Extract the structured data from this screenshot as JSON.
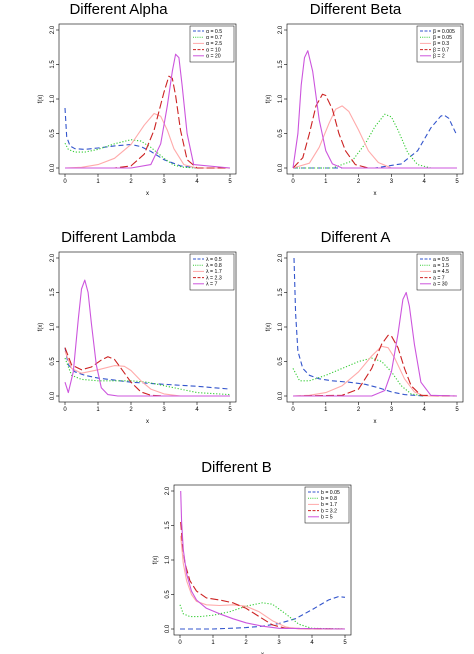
{
  "chart_data": [
    {
      "type": "line",
      "title": "Different Alpha",
      "xlabel": "x",
      "ylabel": "f(x)",
      "xlim": [
        0,
        5
      ],
      "ylim": [
        0,
        2.0
      ],
      "x_ticks": [
        "0",
        "1",
        "2",
        "3",
        "4",
        "5"
      ],
      "y_ticks": [
        "0.0",
        "0.5",
        "1.0",
        "1.5",
        "2.0"
      ],
      "legend_position": "top-right",
      "series": [
        {
          "name": "α = 0.5",
          "color": "#3355cc",
          "dash": "dashed",
          "x": [
            0,
            0.05,
            0.15,
            0.3,
            0.6,
            1.0,
            1.5,
            2.0,
            2.3,
            2.6,
            3.0,
            3.5,
            4.0,
            5.0
          ],
          "y": [
            0.87,
            0.45,
            0.32,
            0.28,
            0.27,
            0.29,
            0.32,
            0.34,
            0.31,
            0.24,
            0.12,
            0.03,
            0.0,
            0.0
          ]
        },
        {
          "name": "α = 0.7",
          "color": "#33cc33",
          "dash": "dotted",
          "x": [
            0,
            0.1,
            0.3,
            0.6,
            1.0,
            1.5,
            2.0,
            2.3,
            2.6,
            3.0,
            3.3,
            3.6,
            4.0,
            5.0
          ],
          "y": [
            0.36,
            0.27,
            0.23,
            0.23,
            0.27,
            0.35,
            0.41,
            0.39,
            0.3,
            0.14,
            0.04,
            0.01,
            0.0,
            0.0
          ]
        },
        {
          "name": "α = 2.5",
          "color": "#ffaaaa",
          "dash": "solid",
          "x": [
            0,
            0.5,
            1.0,
            1.5,
            2.0,
            2.4,
            2.7,
            2.9,
            3.1,
            3.3,
            3.6,
            4.0,
            5.0
          ],
          "y": [
            0.0,
            0.01,
            0.05,
            0.14,
            0.34,
            0.62,
            0.79,
            0.75,
            0.55,
            0.28,
            0.05,
            0.0,
            0.0
          ]
        },
        {
          "name": "α = 10",
          "color": "#cc2222",
          "dash": "longdash",
          "x": [
            0,
            1.5,
            2.0,
            2.4,
            2.7,
            3.0,
            3.15,
            3.25,
            3.35,
            3.5,
            3.7,
            4.0,
            5.0
          ],
          "y": [
            0.0,
            0.0,
            0.03,
            0.2,
            0.55,
            1.1,
            1.33,
            1.3,
            1.05,
            0.55,
            0.12,
            0.0,
            0.0
          ]
        },
        {
          "name": "α = 20",
          "color": "#cc55dd",
          "dash": "solid",
          "x": [
            0,
            2.0,
            2.6,
            2.9,
            3.1,
            3.25,
            3.35,
            3.45,
            3.55,
            3.7,
            3.9,
            5.0
          ],
          "y": [
            0.0,
            0.0,
            0.05,
            0.35,
            0.9,
            1.4,
            1.65,
            1.6,
            1.2,
            0.5,
            0.05,
            0.0
          ]
        }
      ]
    },
    {
      "type": "line",
      "title": "Different Beta",
      "xlabel": "x",
      "ylabel": "f(x)",
      "xlim": [
        0,
        5
      ],
      "ylim": [
        0,
        2.0
      ],
      "x_ticks": [
        "0",
        "1",
        "2",
        "3",
        "4",
        "5"
      ],
      "y_ticks": [
        "0.0",
        "0.5",
        "1.0",
        "1.5",
        "2.0"
      ],
      "legend_position": "top-right",
      "series": [
        {
          "name": "β = 0.005",
          "color": "#3355cc",
          "dash": "dashed",
          "x": [
            0,
            2.5,
            3.3,
            3.8,
            4.2,
            4.5,
            4.6,
            4.75,
            4.9,
            5.0
          ],
          "y": [
            0.0,
            0.0,
            0.06,
            0.25,
            0.58,
            0.75,
            0.77,
            0.72,
            0.57,
            0.47
          ]
        },
        {
          "name": "β = 0.05",
          "color": "#33cc33",
          "dash": "dotted",
          "x": [
            0,
            1.2,
            1.8,
            2.2,
            2.5,
            2.8,
            3.0,
            3.2,
            3.5,
            3.8,
            4.2,
            5.0
          ],
          "y": [
            0.0,
            0.0,
            0.1,
            0.35,
            0.6,
            0.78,
            0.74,
            0.55,
            0.22,
            0.05,
            0.0,
            0.0
          ]
        },
        {
          "name": "β = 0.3",
          "color": "#ffaaaa",
          "dash": "solid",
          "x": [
            0,
            0.5,
            0.8,
            1.1,
            1.3,
            1.5,
            1.7,
            2.0,
            2.3,
            2.6,
            3.0,
            5.0
          ],
          "y": [
            0.0,
            0.07,
            0.3,
            0.65,
            0.85,
            0.9,
            0.82,
            0.55,
            0.25,
            0.08,
            0.0,
            0.0
          ]
        },
        {
          "name": "β = 0.7",
          "color": "#cc2222",
          "dash": "longdash",
          "x": [
            0,
            0.3,
            0.5,
            0.7,
            0.9,
            1.0,
            1.2,
            1.4,
            1.6,
            1.9,
            2.3,
            5.0
          ],
          "y": [
            0.0,
            0.15,
            0.5,
            0.9,
            1.07,
            1.05,
            0.85,
            0.5,
            0.25,
            0.05,
            0.0,
            0.0
          ]
        },
        {
          "name": "β = 2",
          "color": "#cc55dd",
          "dash": "solid",
          "x": [
            0,
            0.15,
            0.25,
            0.35,
            0.45,
            0.6,
            0.8,
            1.0,
            1.2,
            1.5,
            5.0
          ],
          "y": [
            0.0,
            0.5,
            1.2,
            1.6,
            1.7,
            1.4,
            0.7,
            0.25,
            0.06,
            0.0,
            0.0
          ]
        }
      ]
    },
    {
      "type": "line",
      "title": "Different Lambda",
      "xlabel": "x",
      "ylabel": "f(x)",
      "xlim": [
        0,
        5
      ],
      "ylim": [
        0,
        2.0
      ],
      "x_ticks": [
        "0",
        "1",
        "2",
        "3",
        "4",
        "5"
      ],
      "y_ticks": [
        "0.0",
        "0.5",
        "1.0",
        "1.5",
        "2.0"
      ],
      "legend_position": "top-right",
      "series": [
        {
          "name": "λ = 0.5",
          "color": "#3355cc",
          "dash": "dashed",
          "x": [
            0,
            0.1,
            0.3,
            0.6,
            1.0,
            1.5,
            2.0,
            3.0,
            4.0,
            5.0
          ],
          "y": [
            0.7,
            0.45,
            0.35,
            0.3,
            0.26,
            0.23,
            0.2,
            0.17,
            0.14,
            0.1
          ]
        },
        {
          "name": "λ = 0.8",
          "color": "#33cc33",
          "dash": "dotted",
          "x": [
            0,
            0.2,
            0.5,
            1.0,
            1.5,
            2.0,
            2.5,
            3.0,
            3.5,
            4.0,
            5.0
          ],
          "y": [
            0.55,
            0.3,
            0.24,
            0.22,
            0.22,
            0.22,
            0.2,
            0.15,
            0.1,
            0.05,
            0.02
          ]
        },
        {
          "name": "λ = 1.7",
          "color": "#ffaaaa",
          "dash": "solid",
          "x": [
            0,
            0.2,
            0.5,
            1.0,
            1.5,
            1.8,
            2.0,
            2.3,
            2.6,
            3.0,
            3.5,
            5.0
          ],
          "y": [
            0.65,
            0.4,
            0.33,
            0.38,
            0.44,
            0.43,
            0.37,
            0.22,
            0.1,
            0.03,
            0.0,
            0.0
          ]
        },
        {
          "name": "λ = 2.3",
          "color": "#cc2222",
          "dash": "longdash",
          "x": [
            0,
            0.2,
            0.5,
            0.8,
            1.1,
            1.3,
            1.5,
            1.7,
            2.0,
            2.3,
            2.6,
            3.0,
            5.0
          ],
          "y": [
            0.7,
            0.45,
            0.38,
            0.42,
            0.52,
            0.57,
            0.53,
            0.4,
            0.2,
            0.06,
            0.01,
            0.0,
            0.0
          ]
        },
        {
          "name": "λ = 7",
          "color": "#cc55dd",
          "dash": "solid",
          "x": [
            0,
            0.1,
            0.25,
            0.4,
            0.5,
            0.6,
            0.7,
            0.8,
            0.95,
            1.1,
            1.3,
            1.6,
            2.0,
            5.0
          ],
          "y": [
            0.2,
            0.05,
            0.35,
            1.1,
            1.55,
            1.68,
            1.5,
            1.05,
            0.45,
            0.12,
            0.02,
            0.0,
            0.0,
            0.0
          ]
        }
      ]
    },
    {
      "type": "line",
      "title": "Different A",
      "xlabel": "x",
      "ylabel": "f(x)",
      "xlim": [
        0,
        5
      ],
      "ylim": [
        0,
        2.0
      ],
      "x_ticks": [
        "0",
        "1",
        "2",
        "3",
        "4",
        "5"
      ],
      "y_ticks": [
        "0.0",
        "0.5",
        "1.0",
        "1.5",
        "2.0"
      ],
      "legend_position": "top-right",
      "series": [
        {
          "name": "a = 0.5",
          "color": "#3355cc",
          "dash": "dashed",
          "x": [
            0.03,
            0.08,
            0.15,
            0.3,
            0.5,
            0.8,
            1.2,
            1.7,
            2.2,
            2.6,
            3.0,
            3.4,
            4.0,
            5.0
          ],
          "y": [
            2.0,
            1.2,
            0.65,
            0.4,
            0.3,
            0.25,
            0.22,
            0.2,
            0.17,
            0.12,
            0.06,
            0.02,
            0.0,
            0.0
          ]
        },
        {
          "name": "a = 1.5",
          "color": "#33cc33",
          "dash": "dotted",
          "x": [
            0,
            0.2,
            0.5,
            1.0,
            1.5,
            2.0,
            2.4,
            2.7,
            3.0,
            3.3,
            3.6,
            4.0,
            5.0
          ],
          "y": [
            0.4,
            0.22,
            0.22,
            0.3,
            0.4,
            0.5,
            0.55,
            0.5,
            0.35,
            0.15,
            0.03,
            0.0,
            0.0
          ]
        },
        {
          "name": "a = 4.5",
          "color": "#ffaaaa",
          "dash": "solid",
          "x": [
            0,
            0.5,
            1.0,
            1.5,
            2.0,
            2.4,
            2.7,
            2.9,
            3.1,
            3.4,
            3.7,
            4.0,
            5.0
          ],
          "y": [
            0.0,
            0.01,
            0.05,
            0.15,
            0.35,
            0.58,
            0.72,
            0.7,
            0.55,
            0.25,
            0.06,
            0.0,
            0.0
          ]
        },
        {
          "name": "a = 7",
          "color": "#cc2222",
          "dash": "longdash",
          "x": [
            0,
            1.5,
            2.0,
            2.4,
            2.7,
            2.9,
            3.0,
            3.2,
            3.4,
            3.6,
            3.9,
            5.0
          ],
          "y": [
            0.0,
            0.01,
            0.1,
            0.4,
            0.75,
            0.88,
            0.87,
            0.7,
            0.4,
            0.15,
            0.01,
            0.0
          ]
        },
        {
          "name": "a = 30",
          "color": "#cc55dd",
          "dash": "solid",
          "x": [
            0,
            2.4,
            2.8,
            3.0,
            3.2,
            3.35,
            3.45,
            3.55,
            3.7,
            3.9,
            4.2,
            5.0
          ],
          "y": [
            0.0,
            0.0,
            0.08,
            0.35,
            0.9,
            1.4,
            1.5,
            1.3,
            0.75,
            0.2,
            0.01,
            0.0
          ]
        }
      ]
    },
    {
      "type": "line",
      "title": "Different B",
      "xlabel": "x",
      "ylabel": "f(x)",
      "xlim": [
        0,
        5
      ],
      "ylim": [
        0,
        2.0
      ],
      "x_ticks": [
        "0",
        "1",
        "2",
        "3",
        "4",
        "5"
      ],
      "y_ticks": [
        "0.0",
        "0.5",
        "1.0",
        "1.5",
        "2.0"
      ],
      "legend_position": "top-right",
      "series": [
        {
          "name": "b = 0.05",
          "color": "#3355cc",
          "dash": "dashed",
          "x": [
            0,
            1.0,
            2.0,
            2.5,
            3.0,
            3.5,
            4.0,
            4.5,
            4.8,
            5.0
          ],
          "y": [
            0.0,
            0.0,
            0.02,
            0.04,
            0.08,
            0.15,
            0.28,
            0.42,
            0.47,
            0.46
          ]
        },
        {
          "name": "b = 0.8",
          "color": "#33cc33",
          "dash": "dotted",
          "x": [
            0,
            0.1,
            0.3,
            0.6,
            1.0,
            1.5,
            2.0,
            2.5,
            2.8,
            3.2,
            3.6,
            4.0,
            5.0
          ],
          "y": [
            0.35,
            0.22,
            0.18,
            0.18,
            0.2,
            0.25,
            0.33,
            0.38,
            0.36,
            0.22,
            0.07,
            0.01,
            0.0
          ]
        },
        {
          "name": "b = 1.7",
          "color": "#ffaaaa",
          "dash": "solid",
          "x": [
            0.02,
            0.1,
            0.2,
            0.35,
            0.5,
            0.8,
            1.2,
            1.6,
            2.0,
            2.4,
            2.8,
            3.2,
            3.6,
            5.0
          ],
          "y": [
            1.35,
            0.95,
            0.7,
            0.5,
            0.4,
            0.35,
            0.34,
            0.35,
            0.33,
            0.25,
            0.12,
            0.03,
            0.0,
            0.0
          ]
        },
        {
          "name": "b = 3.2",
          "color": "#cc2222",
          "dash": "longdash",
          "x": [
            0.02,
            0.08,
            0.15,
            0.3,
            0.5,
            0.8,
            1.2,
            1.6,
            2.0,
            2.4,
            2.8,
            3.2,
            5.0
          ],
          "y": [
            1.55,
            1.2,
            0.95,
            0.7,
            0.55,
            0.45,
            0.42,
            0.38,
            0.3,
            0.18,
            0.06,
            0.01,
            0.0
          ]
        },
        {
          "name": "b = 5",
          "color": "#cc55dd",
          "dash": "solid",
          "x": [
            0.02,
            0.05,
            0.1,
            0.2,
            0.35,
            0.5,
            0.8,
            1.2,
            1.6,
            2.0,
            2.5,
            3.0,
            5.0
          ],
          "y": [
            2.0,
            1.55,
            1.15,
            0.8,
            0.55,
            0.42,
            0.3,
            0.22,
            0.15,
            0.09,
            0.04,
            0.01,
            0.0
          ]
        }
      ]
    }
  ]
}
